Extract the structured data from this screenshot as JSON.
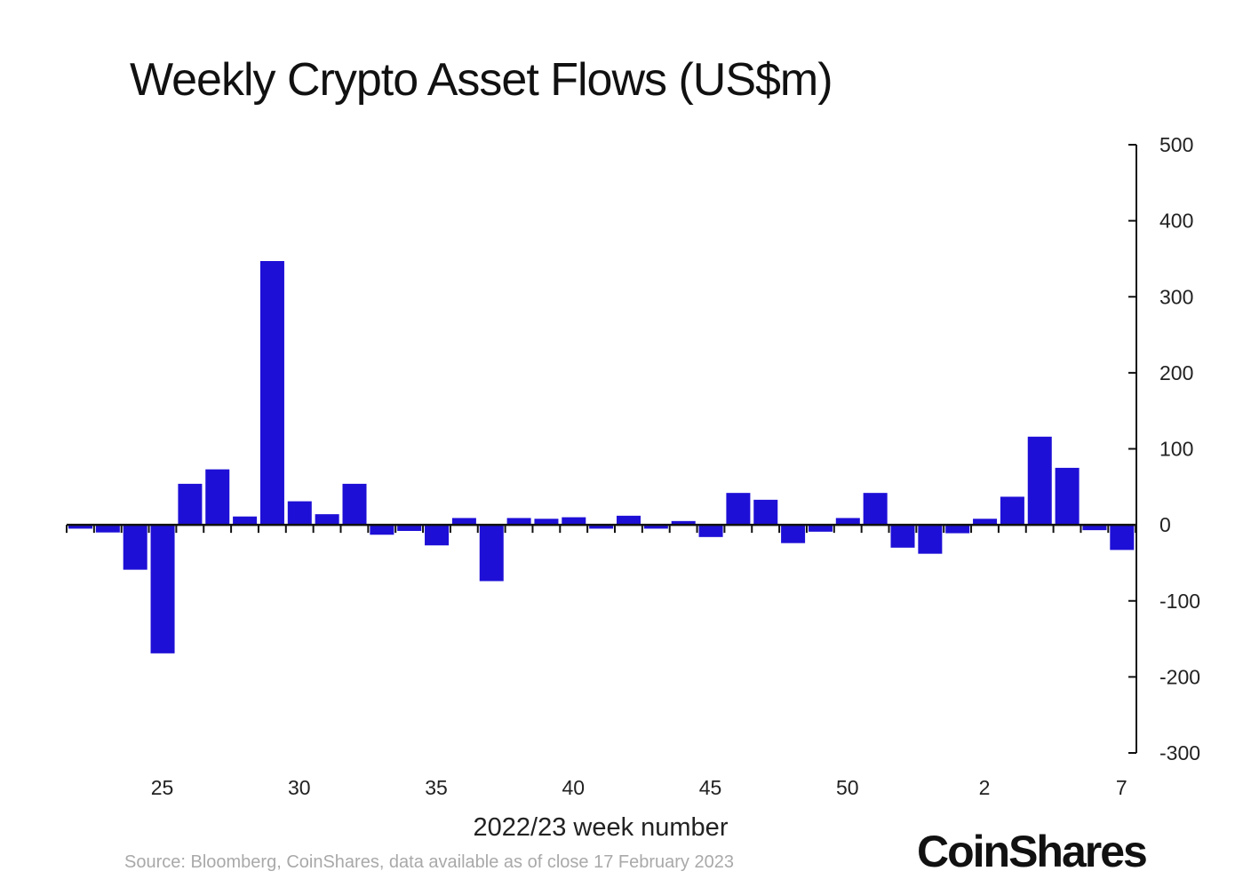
{
  "chart_data": {
    "type": "bar",
    "title": "Weekly Crypto Asset Flows (US$m)",
    "xlabel": "2022/23 week number",
    "ylabel": "",
    "categories": [
      "22",
      "23",
      "24",
      "25",
      "26",
      "27",
      "28",
      "29",
      "30",
      "31",
      "32",
      "33",
      "34",
      "35",
      "36",
      "37",
      "38",
      "39",
      "40",
      "41",
      "42",
      "43",
      "44",
      "45",
      "46",
      "47",
      "48",
      "49",
      "50",
      "51",
      "52",
      "53",
      "1",
      "2",
      "3",
      "4",
      "5",
      "6",
      "7"
    ],
    "values": [
      -5,
      -10,
      -59,
      -169,
      54,
      73,
      11,
      347,
      31,
      14,
      54,
      -13,
      -8,
      -27,
      9,
      -74,
      9,
      8,
      10,
      -5,
      12,
      -5,
      5,
      -16,
      42,
      33,
      -24,
      -9,
      9,
      42,
      -30,
      -38,
      -11,
      8,
      37,
      116,
      75,
      -7,
      -33
    ],
    "x_tick_labels": [
      "25",
      "30",
      "35",
      "40",
      "45",
      "50",
      "2",
      "7"
    ],
    "y_ticks": [
      500,
      400,
      300,
      200,
      100,
      0,
      -100,
      -200,
      -300
    ],
    "ylim": [
      -300,
      500
    ],
    "y_axis_side": "right",
    "grid": false,
    "bar_color": "#1e0fd6"
  },
  "source": "Source: Bloomberg, CoinShares, data available as of close 17 February 2023",
  "logo": "CoinShares"
}
